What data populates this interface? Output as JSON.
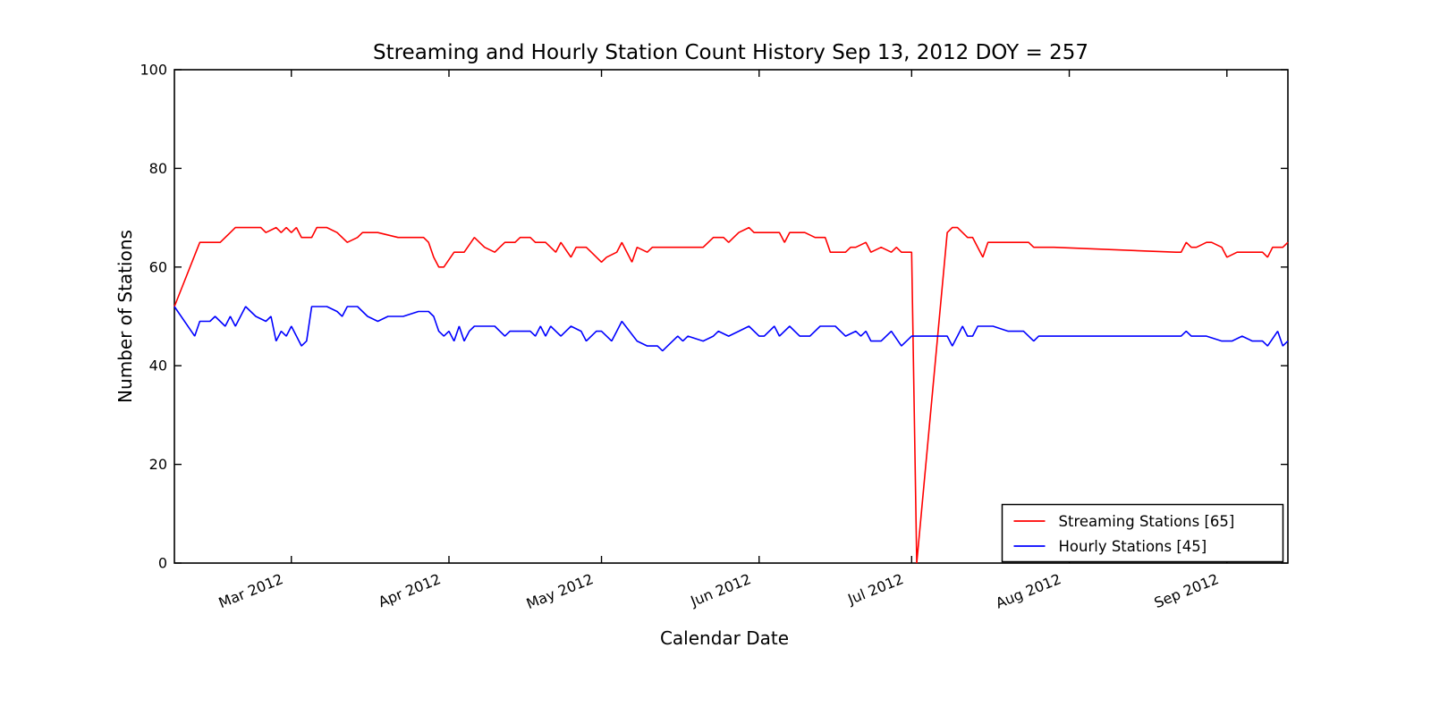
{
  "chart_data": {
    "type": "line",
    "title": "Streaming and Hourly Station Count History Sep 13, 2012 DOY = 257",
    "xlabel": "Calendar Date",
    "ylabel": "Number of Stations",
    "ylim": [
      0,
      100
    ],
    "y_ticks": [
      0,
      20,
      40,
      60,
      80,
      100
    ],
    "grid": false,
    "x_axis": {
      "span_days": 219,
      "ticks": [
        {
          "label": "Mar 2012",
          "day": 23
        },
        {
          "label": "Apr 2012",
          "day": 54
        },
        {
          "label": "May 2012",
          "day": 84
        },
        {
          "label": "Jun 2012",
          "day": 115
        },
        {
          "label": "Jul 2012",
          "day": 145
        },
        {
          "label": "Aug 2012",
          "day": 176
        },
        {
          "label": "Sep 2012",
          "day": 207
        }
      ]
    },
    "legend": {
      "location": "lower right"
    },
    "series": [
      {
        "name": "Streaming Stations [65]",
        "color": "#ff0000",
        "points": [
          [
            0,
            52
          ],
          [
            5,
            65
          ],
          [
            9,
            65
          ],
          [
            11,
            67
          ],
          [
            12,
            68
          ],
          [
            17,
            68
          ],
          [
            18,
            67
          ],
          [
            20,
            68
          ],
          [
            21,
            67
          ],
          [
            22,
            68
          ],
          [
            23,
            67
          ],
          [
            24,
            68
          ],
          [
            25,
            66
          ],
          [
            27,
            66
          ],
          [
            28,
            68
          ],
          [
            30,
            68
          ],
          [
            32,
            67
          ],
          [
            34,
            65
          ],
          [
            36,
            66
          ],
          [
            37,
            67
          ],
          [
            40,
            67
          ],
          [
            44,
            66
          ],
          [
            49,
            66
          ],
          [
            50,
            65
          ],
          [
            51,
            62
          ],
          [
            52,
            60
          ],
          [
            53,
            60
          ],
          [
            55,
            63
          ],
          [
            57,
            63
          ],
          [
            59,
            66
          ],
          [
            60,
            65
          ],
          [
            61,
            64
          ],
          [
            63,
            63
          ],
          [
            64,
            64
          ],
          [
            65,
            65
          ],
          [
            67,
            65
          ],
          [
            68,
            66
          ],
          [
            70,
            66
          ],
          [
            71,
            65
          ],
          [
            73,
            65
          ],
          [
            75,
            63
          ],
          [
            76,
            65
          ],
          [
            78,
            62
          ],
          [
            79,
            64
          ],
          [
            81,
            64
          ],
          [
            82,
            63
          ],
          [
            84,
            61
          ],
          [
            85,
            62
          ],
          [
            87,
            63
          ],
          [
            88,
            65
          ],
          [
            90,
            61
          ],
          [
            91,
            64
          ],
          [
            93,
            63
          ],
          [
            94,
            64
          ],
          [
            98,
            64
          ],
          [
            103,
            64
          ],
          [
            104,
            64
          ],
          [
            105,
            65
          ],
          [
            106,
            66
          ],
          [
            108,
            66
          ],
          [
            109,
            65
          ],
          [
            110,
            66
          ],
          [
            111,
            67
          ],
          [
            113,
            68
          ],
          [
            114,
            67
          ],
          [
            119,
            67
          ],
          [
            120,
            65
          ],
          [
            121,
            67
          ],
          [
            124,
            67
          ],
          [
            126,
            66
          ],
          [
            128,
            66
          ],
          [
            129,
            63
          ],
          [
            132,
            63
          ],
          [
            133,
            64
          ],
          [
            134,
            64
          ],
          [
            136,
            65
          ],
          [
            137,
            63
          ],
          [
            139,
            64
          ],
          [
            141,
            63
          ],
          [
            142,
            64
          ],
          [
            143,
            63
          ],
          [
            145,
            63
          ],
          [
            146,
            0
          ],
          [
            152,
            67
          ],
          [
            153,
            68
          ],
          [
            154,
            68
          ],
          [
            155,
            67
          ],
          [
            156,
            66
          ],
          [
            157,
            66
          ],
          [
            159,
            62
          ],
          [
            160,
            65
          ],
          [
            161,
            65
          ],
          [
            167,
            65
          ],
          [
            168,
            65
          ],
          [
            169,
            64
          ],
          [
            173,
            64
          ],
          [
            197,
            63
          ],
          [
            198,
            63
          ],
          [
            199,
            65
          ],
          [
            200,
            64
          ],
          [
            201,
            64
          ],
          [
            203,
            65
          ],
          [
            204,
            65
          ],
          [
            206,
            64
          ],
          [
            207,
            62
          ],
          [
            209,
            63
          ],
          [
            214,
            63
          ],
          [
            215,
            62
          ],
          [
            216,
            64
          ],
          [
            218,
            64
          ],
          [
            219,
            65
          ]
        ]
      },
      {
        "name": "Hourly Stations [45]",
        "color": "#0000ff",
        "points": [
          [
            0,
            52
          ],
          [
            4,
            46
          ],
          [
            5,
            49
          ],
          [
            7,
            49
          ],
          [
            8,
            50
          ],
          [
            10,
            48
          ],
          [
            11,
            50
          ],
          [
            12,
            48
          ],
          [
            13,
            50
          ],
          [
            14,
            52
          ],
          [
            16,
            50
          ],
          [
            18,
            49
          ],
          [
            19,
            50
          ],
          [
            20,
            45
          ],
          [
            21,
            47
          ],
          [
            22,
            46
          ],
          [
            23,
            48
          ],
          [
            25,
            44
          ],
          [
            26,
            45
          ],
          [
            27,
            52
          ],
          [
            30,
            52
          ],
          [
            32,
            51
          ],
          [
            33,
            50
          ],
          [
            34,
            52
          ],
          [
            36,
            52
          ],
          [
            38,
            50
          ],
          [
            40,
            49
          ],
          [
            42,
            50
          ],
          [
            45,
            50
          ],
          [
            48,
            51
          ],
          [
            50,
            51
          ],
          [
            51,
            50
          ],
          [
            52,
            47
          ],
          [
            53,
            46
          ],
          [
            54,
            47
          ],
          [
            55,
            45
          ],
          [
            56,
            48
          ],
          [
            57,
            45
          ],
          [
            58,
            47
          ],
          [
            59,
            48
          ],
          [
            63,
            48
          ],
          [
            65,
            46
          ],
          [
            66,
            47
          ],
          [
            70,
            47
          ],
          [
            71,
            46
          ],
          [
            72,
            48
          ],
          [
            73,
            46
          ],
          [
            74,
            48
          ],
          [
            76,
            46
          ],
          [
            78,
            48
          ],
          [
            80,
            47
          ],
          [
            81,
            45
          ],
          [
            83,
            47
          ],
          [
            84,
            47
          ],
          [
            85,
            46
          ],
          [
            86,
            45
          ],
          [
            87,
            47
          ],
          [
            88,
            49
          ],
          [
            91,
            45
          ],
          [
            93,
            44
          ],
          [
            95,
            44
          ],
          [
            96,
            43
          ],
          [
            98,
            45
          ],
          [
            99,
            46
          ],
          [
            100,
            45
          ],
          [
            101,
            46
          ],
          [
            104,
            45
          ],
          [
            106,
            46
          ],
          [
            107,
            47
          ],
          [
            109,
            46
          ],
          [
            111,
            47
          ],
          [
            113,
            48
          ],
          [
            115,
            46
          ],
          [
            116,
            46
          ],
          [
            118,
            48
          ],
          [
            119,
            46
          ],
          [
            121,
            48
          ],
          [
            123,
            46
          ],
          [
            125,
            46
          ],
          [
            127,
            48
          ],
          [
            128,
            48
          ],
          [
            130,
            48
          ],
          [
            132,
            46
          ],
          [
            134,
            47
          ],
          [
            135,
            46
          ],
          [
            136,
            47
          ],
          [
            137,
            45
          ],
          [
            139,
            45
          ],
          [
            141,
            47
          ],
          [
            143,
            44
          ],
          [
            145,
            46
          ],
          [
            152,
            46
          ],
          [
            153,
            44
          ],
          [
            154,
            46
          ],
          [
            155,
            48
          ],
          [
            156,
            46
          ],
          [
            157,
            46
          ],
          [
            158,
            48
          ],
          [
            161,
            48
          ],
          [
            164,
            47
          ],
          [
            167,
            47
          ],
          [
            169,
            45
          ],
          [
            170,
            46
          ],
          [
            173,
            46
          ],
          [
            197,
            46
          ],
          [
            198,
            46
          ],
          [
            199,
            47
          ],
          [
            200,
            46
          ],
          [
            203,
            46
          ],
          [
            206,
            45
          ],
          [
            208,
            45
          ],
          [
            210,
            46
          ],
          [
            212,
            45
          ],
          [
            214,
            45
          ],
          [
            215,
            44
          ],
          [
            217,
            47
          ],
          [
            218,
            44
          ],
          [
            219,
            45
          ]
        ]
      }
    ]
  }
}
